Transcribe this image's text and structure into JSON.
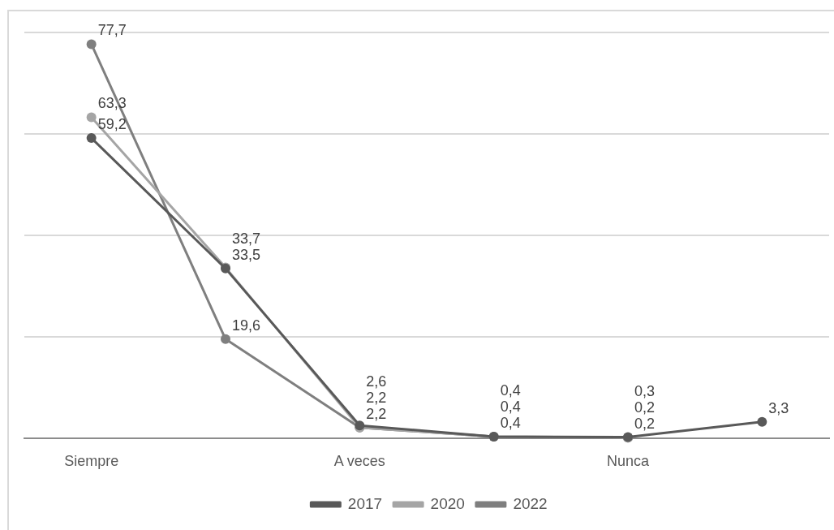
{
  "chart_data": {
    "type": "line",
    "categories": [
      "Siempre",
      null,
      "A veces",
      null,
      "Nunca",
      null
    ],
    "series": [
      {
        "name": "2017",
        "color": "#595959",
        "values": [
          59.2,
          33.5,
          2.6,
          0.4,
          0.3,
          3.3
        ],
        "value_labels": [
          "59,2",
          "33,5",
          "2,6",
          "0,4",
          "0,3",
          "3,3"
        ]
      },
      {
        "name": "2020",
        "color": "#a5a5a5",
        "values": [
          63.3,
          33.7,
          2.2,
          0.4,
          0.2,
          null
        ],
        "value_labels": [
          "63,3",
          "33,7",
          "2,2",
          "0,4",
          "0,2",
          null
        ]
      },
      {
        "name": "2022",
        "color": "#7f7f7f",
        "values": [
          77.7,
          19.6,
          2.2,
          0.4,
          0.2,
          null
        ],
        "value_labels": [
          "77,7",
          "19,6",
          "2,2",
          "0,4",
          "0,2",
          null
        ]
      }
    ],
    "grid": "y",
    "tick_labels": "x",
    "legend": "bottom",
    "marker": "circle",
    "line_style": "solid"
  }
}
